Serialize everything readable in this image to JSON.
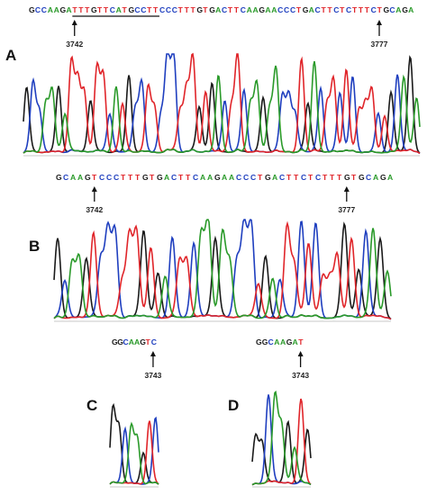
{
  "colors": {
    "A": "#2a9a2a",
    "C": "#1f3fbf",
    "G": "#1a1a1a",
    "T": "#e0252a",
    "baseline": "#c8c8c8"
  },
  "panels": [
    {
      "id": "A",
      "label": "A",
      "sequence": "GCCAAGATTTGTTCATGCCTTCCCTTTGTGACTTCAAGAACCCTGACTTCTCTTTCTGCAGA",
      "markers": [
        {
          "label": "3742",
          "base_index": 7
        },
        {
          "label": "3777",
          "base_index": 56
        }
      ],
      "underline": {
        "from_index": 7,
        "to_index": 20
      }
    },
    {
      "id": "B",
      "label": "B",
      "sequence": "GCAAGTCCCTTTGTGACTTCAAGAACCCTGACTTCTCTTTGTGCAGA",
      "markers": [
        {
          "label": "3742",
          "base_index": 5
        },
        {
          "label": "3777",
          "base_index": 40
        }
      ]
    },
    {
      "id": "C",
      "label": "C",
      "sequence": "GGCAAGTC",
      "markers": [
        {
          "label": "3743",
          "base_index": 7
        }
      ]
    },
    {
      "id": "D",
      "label": "D",
      "sequence": "GGCAAGAT",
      "markers": [
        {
          "label": "3743",
          "base_index": 7
        }
      ]
    }
  ]
}
